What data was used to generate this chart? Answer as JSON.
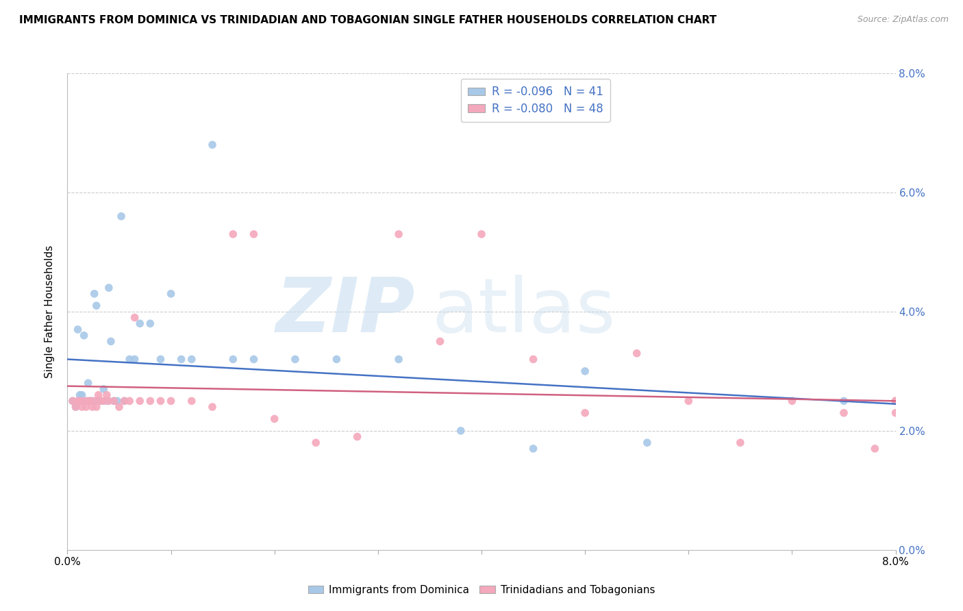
{
  "title": "IMMIGRANTS FROM DOMINICA VS TRINIDADIAN AND TOBAGONIAN SINGLE FATHER HOUSEHOLDS CORRELATION CHART",
  "source": "Source: ZipAtlas.com",
  "ylabel": "Single Father Households",
  "legend_label1": "Immigrants from Dominica",
  "legend_label2": "Trinidadians and Tobagonians",
  "legend_R1": "R = -0.096",
  "legend_N1": "N = 41",
  "legend_R2": "R = -0.080",
  "legend_N2": "N = 48",
  "color_blue": "#a8c8e8",
  "color_pink": "#f4a8bc",
  "color_blue_text": "#4472c4",
  "color_pink_text": "#d05070",
  "color_line_blue": "#4472c4",
  "color_line_pink": "#d06080",
  "xlim": [
    0.0,
    8.0
  ],
  "ylim": [
    0.0,
    8.0
  ],
  "blue_x": [
    0.05,
    0.08,
    0.1,
    0.12,
    0.14,
    0.16,
    0.18,
    0.2,
    0.22,
    0.24,
    0.26,
    0.28,
    0.3,
    0.32,
    0.35,
    0.38,
    0.4,
    0.42,
    0.45,
    0.48,
    0.52,
    0.55,
    0.6,
    0.65,
    0.7,
    0.8,
    0.9,
    1.0,
    1.1,
    1.2,
    1.4,
    1.6,
    1.8,
    2.2,
    2.6,
    3.2,
    3.8,
    4.5,
    5.0,
    5.6,
    7.5
  ],
  "blue_y": [
    2.5,
    2.4,
    3.7,
    2.6,
    2.6,
    3.6,
    2.5,
    2.8,
    2.5,
    2.5,
    4.3,
    4.1,
    2.5,
    2.5,
    2.7,
    2.5,
    4.4,
    3.5,
    2.5,
    2.5,
    5.6,
    2.5,
    3.2,
    3.2,
    3.8,
    3.8,
    3.2,
    4.3,
    3.2,
    3.2,
    6.8,
    3.2,
    3.2,
    3.2,
    3.2,
    3.2,
    2.0,
    1.7,
    3.0,
    1.8,
    2.5
  ],
  "pink_x": [
    0.05,
    0.08,
    0.1,
    0.12,
    0.14,
    0.16,
    0.18,
    0.2,
    0.22,
    0.24,
    0.26,
    0.28,
    0.3,
    0.32,
    0.35,
    0.38,
    0.4,
    0.45,
    0.5,
    0.55,
    0.6,
    0.65,
    0.7,
    0.8,
    0.9,
    1.0,
    1.2,
    1.4,
    1.6,
    1.8,
    2.0,
    2.4,
    2.8,
    3.2,
    3.6,
    4.0,
    4.5,
    5.0,
    5.5,
    6.0,
    6.5,
    7.0,
    7.5,
    7.8,
    8.0,
    8.0,
    8.0,
    8.0
  ],
  "pink_y": [
    2.5,
    2.4,
    2.5,
    2.5,
    2.4,
    2.5,
    2.4,
    2.5,
    2.5,
    2.4,
    2.5,
    2.4,
    2.6,
    2.5,
    2.5,
    2.6,
    2.5,
    2.5,
    2.4,
    2.5,
    2.5,
    3.9,
    2.5,
    2.5,
    2.5,
    2.5,
    2.5,
    2.4,
    5.3,
    5.3,
    2.2,
    1.8,
    1.9,
    5.3,
    3.5,
    5.3,
    3.2,
    2.3,
    3.3,
    2.5,
    1.8,
    2.5,
    2.3,
    1.7,
    2.5,
    2.3,
    2.5,
    2.5
  ],
  "blue_trend_y_start": 3.2,
  "blue_trend_y_end": 2.45,
  "pink_trend_y_start": 2.75,
  "pink_trend_y_end": 2.5
}
